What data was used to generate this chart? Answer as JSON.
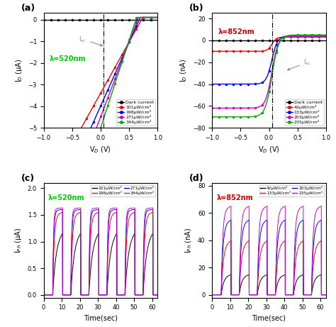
{
  "fig_width": 4.74,
  "fig_height": 4.61,
  "dpi": 100,
  "panel_a": {
    "label": "(a)",
    "wavelength_text": "λ=520nm",
    "wavelength_color": "#00cc00",
    "xlabel": "V$_D$ (V)",
    "ylabel": "I$_D$ (μA)",
    "xlim": [
      -1.0,
      1.0
    ],
    "ylim": [
      -5.0,
      0.3
    ],
    "yticks": [
      -5,
      -4,
      -3,
      -2,
      -1,
      0
    ],
    "xticks": [
      -1.0,
      -0.5,
      0.0,
      0.5,
      1.0
    ],
    "vline_x": 0.05,
    "series": [
      {
        "label": "Dark current",
        "color": "#000000",
        "sat": -0.01,
        "voc": 1.2
      },
      {
        "label": "101μW/cm²",
        "color": "#ff0000",
        "sat": -3.4,
        "voc": 0.72
      },
      {
        "label": "198μW/cm²",
        "color": "#0000ff",
        "sat": -4.0,
        "voc": 0.68
      },
      {
        "label": "271μW/cm²",
        "color": "#cc00cc",
        "sat": -4.5,
        "voc": 0.65
      },
      {
        "label": "344μW/cm²",
        "color": "#00aa00",
        "sat": -5.0,
        "voc": 0.62
      }
    ]
  },
  "panel_b": {
    "label": "(b)",
    "wavelength_text": "λ=852nm",
    "wavelength_color": "#cc0000",
    "xlabel": "V$_D$ (V)",
    "ylabel": "I$_D$ (nA)",
    "xlim": [
      -1.0,
      1.0
    ],
    "ylim": [
      -80,
      25
    ],
    "yticks": [
      -80,
      -60,
      -40,
      -20,
      0,
      20
    ],
    "xticks": [
      -1.0,
      -0.5,
      0.0,
      0.5,
      1.0
    ],
    "vline_x": 0.05,
    "series": [
      {
        "label": "Dark current",
        "color": "#000000",
        "flat": -0.5,
        "peak": 1.0,
        "steep": 20
      },
      {
        "label": "42μW/cm²",
        "color": "#ff0000",
        "flat": -10.0,
        "peak": 3.0,
        "steep": 25
      },
      {
        "label": "133μW/cm²",
        "color": "#0000ff",
        "flat": -40.0,
        "peak": 4.0,
        "steep": 20
      },
      {
        "label": "203μW/cm²",
        "color": "#cc00cc",
        "flat": -62.0,
        "peak": 4.0,
        "steep": 18
      },
      {
        "label": "235μW/cm²",
        "color": "#00aa00",
        "flat": -70.0,
        "peak": 5.0,
        "steep": 17
      }
    ]
  },
  "panel_c": {
    "label": "(c)",
    "wavelength_text": "λ=520nm",
    "wavelength_color": "#00cc00",
    "xlabel": "Time(sec)",
    "ylabel": "I$_{Ph}$ (μA)",
    "xlim": [
      0,
      63
    ],
    "ylim": [
      -0.05,
      2.1
    ],
    "yticks": [
      0.0,
      0.5,
      1.0,
      1.5,
      2.0
    ],
    "xticks": [
      0,
      10,
      20,
      30,
      40,
      50,
      60
    ],
    "series": [
      {
        "label": "101μW/cm²",
        "color": "#000000",
        "on_peak": 1.22,
        "rise_tau": 2.0,
        "drift": 0.18
      },
      {
        "label": "198μW/cm²",
        "color": "#ff0000",
        "on_peak": 1.55,
        "rise_tau": 0.8,
        "drift": 0.08
      },
      {
        "label": "271μW/cm²",
        "color": "#0000ff",
        "on_peak": 1.6,
        "rise_tau": 0.5,
        "drift": 0.03
      },
      {
        "label": "344μW/cm²",
        "color": "#cc00cc",
        "on_peak": 1.63,
        "rise_tau": 0.4,
        "drift": 0.02
      }
    ],
    "period": 10,
    "on_duration": 5.5,
    "num_cycles": 6,
    "start": 5
  },
  "panel_d": {
    "label": "(d)",
    "wavelength_text": "λ=852nm",
    "wavelength_color": "#cc0000",
    "xlabel": "Time(sec)",
    "ylabel": "I$_{Ph}$ (nA)",
    "xlim": [
      0,
      63
    ],
    "ylim": [
      -2,
      82
    ],
    "yticks": [
      0,
      20,
      40,
      60,
      80
    ],
    "xticks": [
      0,
      10,
      20,
      30,
      40,
      50,
      60
    ],
    "series": [
      {
        "label": "42μW/cm²",
        "color": "#000000",
        "on_peak": 15.0,
        "rise_tau": 1.5,
        "drift": 0.8
      },
      {
        "label": "133μW/cm²",
        "color": "#ff0000",
        "on_peak": 40.0,
        "rise_tau": 1.2,
        "drift": 5.0
      },
      {
        "label": "203μW/cm²",
        "color": "#0000ff",
        "on_peak": 55.0,
        "rise_tau": 1.0,
        "drift": 5.0
      },
      {
        "label": "235μW/cm²",
        "color": "#cc00cc",
        "on_peak": 65.0,
        "rise_tau": 0.8,
        "drift": 5.0
      }
    ],
    "period": 10,
    "on_duration": 5.5,
    "num_cycles": 6,
    "start": 5
  }
}
